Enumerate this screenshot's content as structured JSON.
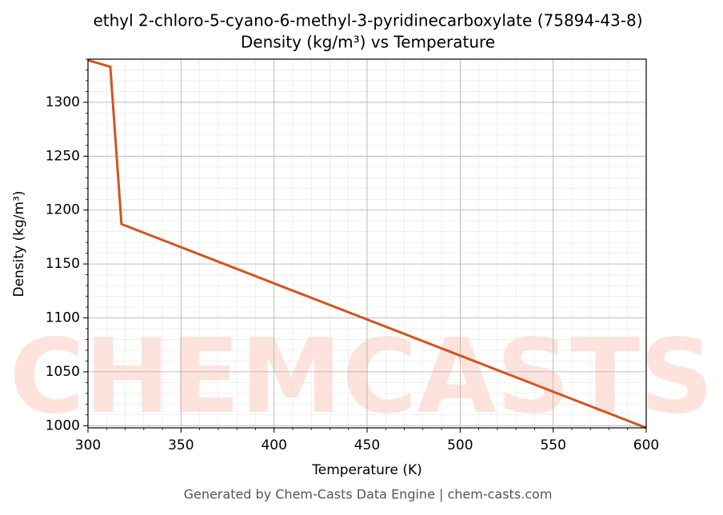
{
  "chart_data": {
    "type": "line",
    "title": "ethyl 2-chloro-5-cyano-6-methyl-3-pyridinecarboxylate (75894-43-8)",
    "subtitle": "Density (kg/m³) vs Temperature",
    "xlabel": "Temperature (K)",
    "ylabel": "Density (kg/m³)",
    "x": [
      300,
      312,
      318,
      600
    ],
    "series": [
      {
        "name": "Density",
        "color": "#d4531f",
        "values": [
          1339,
          1333,
          1187,
          998
        ]
      }
    ],
    "xlim": [
      300,
      600
    ],
    "xticks": [
      300,
      350,
      400,
      450,
      500,
      550,
      600
    ],
    "ylim": [
      998,
      1340
    ],
    "yticks": [
      1000,
      1050,
      1100,
      1150,
      1200,
      1250,
      1300
    ],
    "grid": true,
    "watermark": "CHEMCASTS",
    "footer": "Generated by Chem-Casts Data Engine | chem-casts.com"
  }
}
